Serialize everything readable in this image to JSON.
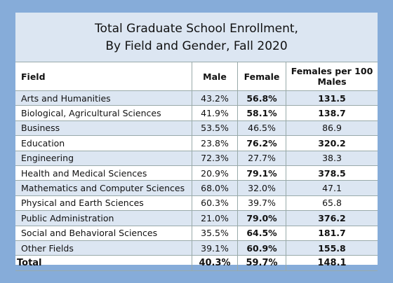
{
  "title": {
    "line1": "Total Graduate School Enrollment,",
    "line2": "By Field and Gender, Fall 2020"
  },
  "table": {
    "header": [
      "Field",
      "Male",
      "Female",
      "Females per 100 Males"
    ],
    "rows": [
      [
        "Arts and Humanities",
        "43.2%",
        "56.8%",
        "131.5"
      ],
      [
        "Biological, Agricultural Sciences",
        "41.9%",
        "58.1%",
        "138.7"
      ],
      [
        "Business",
        "53.5%",
        "46.5%",
        "86.9"
      ],
      [
        "Education",
        "23.8%",
        "76.2%",
        "320.2"
      ],
      [
        "Engineering",
        "72.3%",
        "27.7%",
        "38.3"
      ],
      [
        "Health and Medical Sciences",
        "20.9%",
        "79.1%",
        "378.5"
      ],
      [
        "Mathematics and Computer Sciences",
        "68.0%",
        "32.0%",
        "47.1"
      ],
      [
        "Physical and Earth Sciences",
        "60.3%",
        "39.7%",
        "65.8"
      ],
      [
        "Public Administration",
        "21.0%",
        "79.0%",
        "376.2"
      ],
      [
        "Social and Behavioral Sciences",
        "35.5%",
        "64.5%",
        "181.7"
      ],
      [
        "Other Fields",
        "39.1%",
        "60.9%",
        "155.8"
      ],
      [
        "Total",
        "40.3%",
        "59.7%",
        "148.1"
      ]
    ]
  }
}
